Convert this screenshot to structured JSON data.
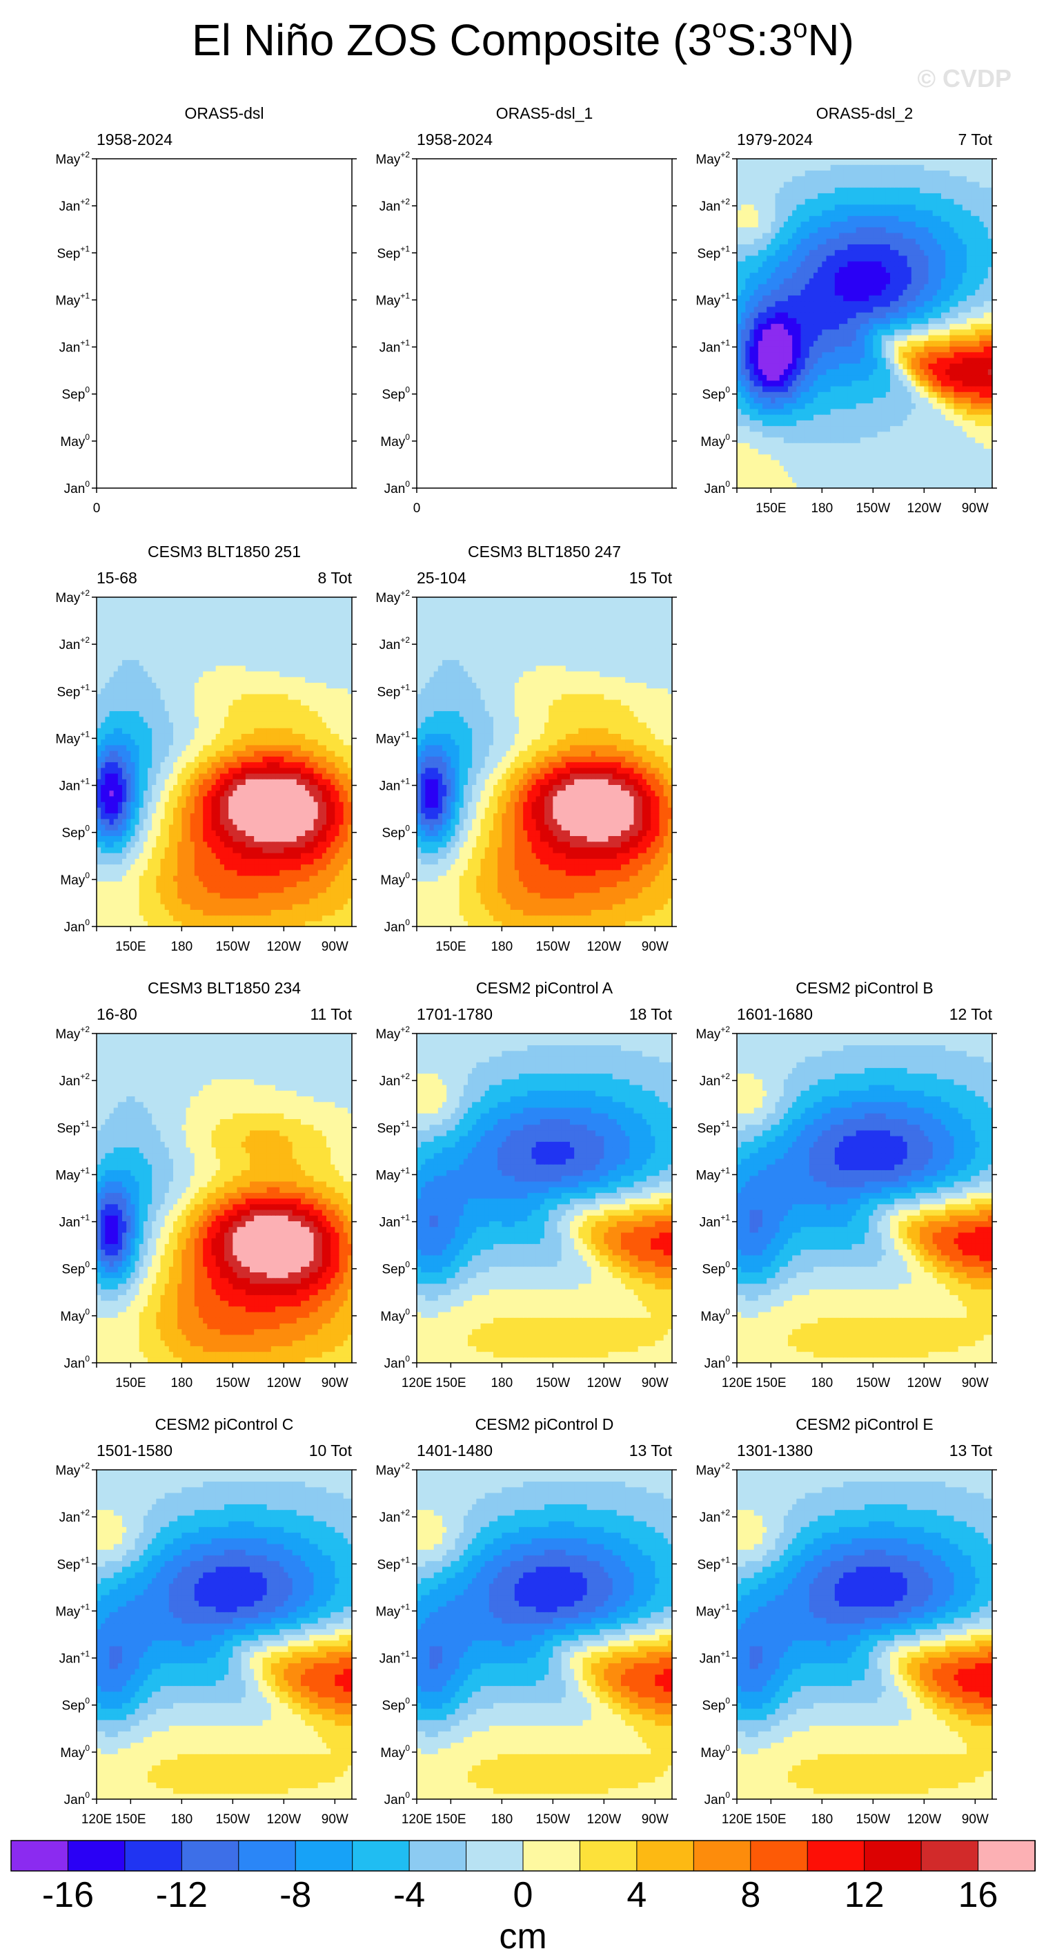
{
  "figure": {
    "title_prefix": "El Niño ZOS Composite (3",
    "title_s": "S:3",
    "title_n": "N)",
    "title_deg": "o",
    "watermark": "© CVDP"
  },
  "chart_data": {
    "type": "heatmap",
    "variable": "ZOS composite, 3°S:3°N",
    "y_tick_labels": [
      {
        "base": "Jan",
        "sup": "0"
      },
      {
        "base": "May",
        "sup": "0"
      },
      {
        "base": "Sep",
        "sup": "0"
      },
      {
        "base": "Jan",
        "sup": "+1"
      },
      {
        "base": "May",
        "sup": "+1"
      },
      {
        "base": "Sep",
        "sup": "+1"
      },
      {
        "base": "Jan",
        "sup": "+2"
      },
      {
        "base": "May",
        "sup": "+2"
      }
    ],
    "x_tick_labels": [
      "120E",
      "150E",
      "180",
      "150W",
      "120W",
      "90W"
    ],
    "x_range_deg": [
      130,
      280
    ],
    "colorbar": {
      "label": "cm",
      "tick_labels": [
        "-16",
        "-12",
        "-8",
        "-4",
        "0",
        "4",
        "8",
        "12",
        "16"
      ],
      "colors": [
        "#8b2bf0",
        "#2a00f5",
        "#2034f2",
        "#3d6fe8",
        "#2a86f7",
        "#17a2f7",
        "#20bdf2",
        "#8ccbf2",
        "#b8e2f3",
        "#fef9a0",
        "#fde13a",
        "#fdb913",
        "#fd8c0c",
        "#fd5a06",
        "#fd0f06",
        "#dc0202",
        "#d22a2a",
        "#fcb0b4"
      ]
    },
    "panels": [
      {
        "name": "ORAS5-dsl",
        "years": "1958-2024",
        "count": "",
        "empty": true,
        "empty_label": "0",
        "pattern": "none"
      },
      {
        "name": "ORAS5-dsl_1",
        "years": "1958-2024",
        "count": "",
        "empty": true,
        "empty_label": "0",
        "pattern": "none"
      },
      {
        "name": "ORAS5-dsl_2",
        "years": "1979-2024",
        "count": "7 Tot",
        "empty": false,
        "pattern": "oras",
        "warm_peak": 15,
        "cold_peak": -13
      },
      {
        "name": "CESM3 BLT1850 251",
        "years": "15-68",
        "count": "8 Tot",
        "empty": false,
        "pattern": "cesm3",
        "warm_peak": 17,
        "cold_peak": -13
      },
      {
        "name": "CESM3 BLT1850 247",
        "years": "25-104",
        "count": "15 Tot",
        "empty": false,
        "pattern": "cesm3",
        "warm_peak": 16,
        "cold_peak": -12
      },
      null,
      {
        "name": "CESM3 BLT1850 234",
        "years": "16-80",
        "count": "11 Tot",
        "empty": false,
        "pattern": "cesm3b",
        "warm_peak": 16,
        "cold_peak": -12
      },
      {
        "name": "CESM2 piControl A",
        "years": "1701-1780",
        "count": "18 Tot",
        "empty": false,
        "pattern": "cesm2",
        "warm_peak": 13,
        "cold_peak": -9
      },
      {
        "name": "CESM2 piControl B",
        "years": "1601-1680",
        "count": "12 Tot",
        "empty": false,
        "pattern": "cesm2",
        "warm_peak": 14,
        "cold_peak": -10
      },
      {
        "name": "CESM2 piControl C",
        "years": "1501-1580",
        "count": "10 Tot",
        "empty": false,
        "pattern": "cesm2",
        "warm_peak": 13,
        "cold_peak": -10
      },
      {
        "name": "CESM2 piControl D",
        "years": "1401-1480",
        "count": "13 Tot",
        "empty": false,
        "pattern": "cesm2",
        "warm_peak": 13,
        "cold_peak": -10
      },
      {
        "name": "CESM2 piControl E",
        "years": "1301-1380",
        "count": "13 Tot",
        "empty": false,
        "pattern": "cesm2",
        "warm_peak": 14,
        "cold_peak": -10
      }
    ]
  }
}
